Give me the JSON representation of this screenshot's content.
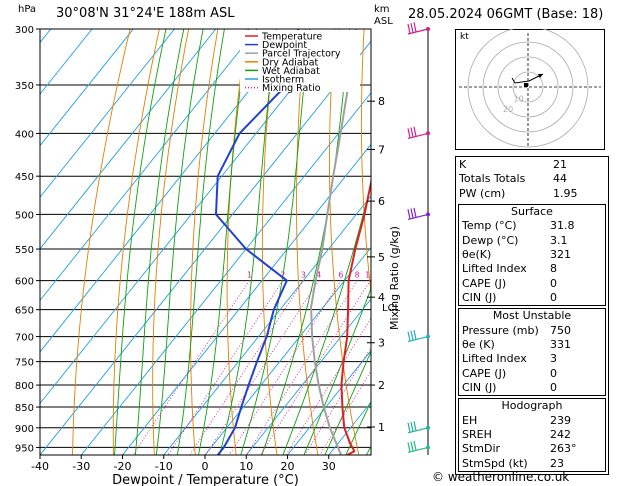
{
  "header": {
    "units_hpa": "hPa",
    "location": "30°08'N 31°24'E 188m ASL",
    "units_km": "km",
    "units_asl": "ASL",
    "datetime": "28.05.2024 06GMT (Base: 18)"
  },
  "copyright": "© weatheronline.co.uk",
  "chart_data": {
    "type": "skewt",
    "xlabel": "Dewpoint / Temperature (°C)",
    "mixing_axis_label": "Mixing Ratio (g/kg)",
    "pressure_levels": [
      300,
      350,
      400,
      450,
      500,
      550,
      600,
      650,
      700,
      750,
      800,
      850,
      900,
      950
    ],
    "temperature_ticks": [
      -40,
      -30,
      -20,
      -10,
      0,
      10,
      20,
      30
    ],
    "height_km": [
      {
        "km": "8",
        "p": 366
      },
      {
        "km": "7",
        "p": 418
      },
      {
        "km": "6",
        "p": 482
      },
      {
        "km": "5",
        "p": 562
      },
      {
        "km": "4",
        "p": 628
      },
      {
        "km": "3",
        "p": 712
      },
      {
        "km": "2",
        "p": 800
      },
      {
        "km": "1",
        "p": 898
      }
    ],
    "lcl_label": "LCL",
    "lcl_p": 645,
    "mixing_ratio_labels": [
      "1",
      "2",
      "3",
      "4",
      "6",
      "8",
      "10",
      "15",
      "20",
      "25"
    ],
    "mixing_ratios": [
      1,
      2,
      3,
      4,
      6,
      8,
      10,
      15,
      20,
      25
    ],
    "legend": [
      {
        "label": "Temperature",
        "color": "#e02020",
        "style": "solid"
      },
      {
        "label": "Dewpoint",
        "color": "#2040d0",
        "style": "solid"
      },
      {
        "label": "Parcel Trajectory",
        "color": "#a0a0a0",
        "style": "solid"
      },
      {
        "label": "Dry Adiabat",
        "color": "#e08000",
        "style": "solid"
      },
      {
        "label": "Wet Adiabat",
        "color": "#10a010",
        "style": "solid"
      },
      {
        "label": "Isotherm",
        "color": "#20a0e0",
        "style": "solid"
      },
      {
        "label": "Mixing Ratio",
        "color": "#d020a0",
        "style": "dotted"
      }
    ],
    "temperature": [
      {
        "p": 970,
        "t": 34.5
      },
      {
        "p": 960,
        "t": 35.5
      },
      {
        "p": 940,
        "t": 33
      },
      {
        "p": 900,
        "t": 28.5
      },
      {
        "p": 850,
        "t": 24
      },
      {
        "p": 800,
        "t": 19.5
      },
      {
        "p": 750,
        "t": 15.5
      },
      {
        "p": 700,
        "t": 11.5
      },
      {
        "p": 650,
        "t": 6.5
      },
      {
        "p": 600,
        "t": 1
      },
      {
        "p": 550,
        "t": -3.5
      },
      {
        "p": 500,
        "t": -8
      },
      {
        "p": 450,
        "t": -13.5
      },
      {
        "p": 400,
        "t": -20
      },
      {
        "p": 350,
        "t": -27.5
      },
      {
        "p": 300,
        "t": -36
      }
    ],
    "dewpoint": [
      {
        "p": 970,
        "t": 3.1
      },
      {
        "p": 950,
        "t": 3.1
      },
      {
        "p": 900,
        "t": 2
      },
      {
        "p": 850,
        "t": -0.5
      },
      {
        "p": 800,
        "t": -3
      },
      {
        "p": 750,
        "t": -5.5
      },
      {
        "p": 700,
        "t": -8
      },
      {
        "p": 650,
        "t": -11.5
      },
      {
        "p": 600,
        "t": -14
      },
      {
        "p": 550,
        "t": -30
      },
      {
        "p": 500,
        "t": -44
      },
      {
        "p": 450,
        "t": -51
      },
      {
        "p": 400,
        "t": -54
      },
      {
        "p": 350,
        "t": -52
      },
      {
        "p": 300,
        "t": -60
      }
    ],
    "parcel": [
      {
        "p": 970,
        "t": 33
      },
      {
        "p": 900,
        "t": 25
      },
      {
        "p": 850,
        "t": 19.5
      },
      {
        "p": 800,
        "t": 14
      },
      {
        "p": 750,
        "t": 8.5
      },
      {
        "p": 700,
        "t": 3
      },
      {
        "p": 645,
        "t": -3
      },
      {
        "p": 600,
        "t": -7
      },
      {
        "p": 550,
        "t": -11.5
      },
      {
        "p": 500,
        "t": -17
      },
      {
        "p": 450,
        "t": -23
      },
      {
        "p": 400,
        "t": -29.5
      },
      {
        "p": 350,
        "t": -37
      },
      {
        "p": 300,
        "t": -46
      }
    ],
    "wind_barbs": [
      {
        "p": 300,
        "color": "#d0208f"
      },
      {
        "p": 400,
        "color": "#d0208f"
      },
      {
        "p": 500,
        "color": "#8020d0"
      },
      {
        "p": 700,
        "color": "#20b0c0"
      },
      {
        "p": 900,
        "color": "#20b0a0"
      },
      {
        "p": 950,
        "color": "#20c080"
      }
    ]
  },
  "hodograph": {
    "unit": "kt",
    "rings": [
      10,
      20,
      30,
      40
    ],
    "ring_labels": [
      "10",
      "20"
    ]
  },
  "indices": {
    "rows": [
      {
        "label": "K",
        "value": "21"
      },
      {
        "label": "Totals Totals",
        "value": "44"
      },
      {
        "label": "PW (cm)",
        "value": "1.95"
      }
    ]
  },
  "surface": {
    "title": "Surface",
    "rows": [
      {
        "label": "Temp (°C)",
        "value": "31.8"
      },
      {
        "label": "Dewp (°C)",
        "value": "3.1"
      },
      {
        "label": "θe(K)",
        "value": "321"
      },
      {
        "label": "Lifted Index",
        "value": "8"
      },
      {
        "label": "CAPE (J)",
        "value": "0"
      },
      {
        "label": "CIN (J)",
        "value": "0"
      }
    ]
  },
  "most_unstable": {
    "title": "Most Unstable",
    "rows": [
      {
        "label": "Pressure (mb)",
        "value": "750"
      },
      {
        "label": "θe (K)",
        "value": "331"
      },
      {
        "label": "Lifted Index",
        "value": "3"
      },
      {
        "label": "CAPE (J)",
        "value": "0"
      },
      {
        "label": "CIN (J)",
        "value": "0"
      }
    ]
  },
  "hodograph_table": {
    "title": "Hodograph",
    "rows": [
      {
        "label": "EH",
        "value": "239"
      },
      {
        "label": "SREH",
        "value": "242"
      },
      {
        "label": "StmDir",
        "value": "263°"
      },
      {
        "label": "StmSpd (kt)",
        "value": "23"
      }
    ]
  }
}
